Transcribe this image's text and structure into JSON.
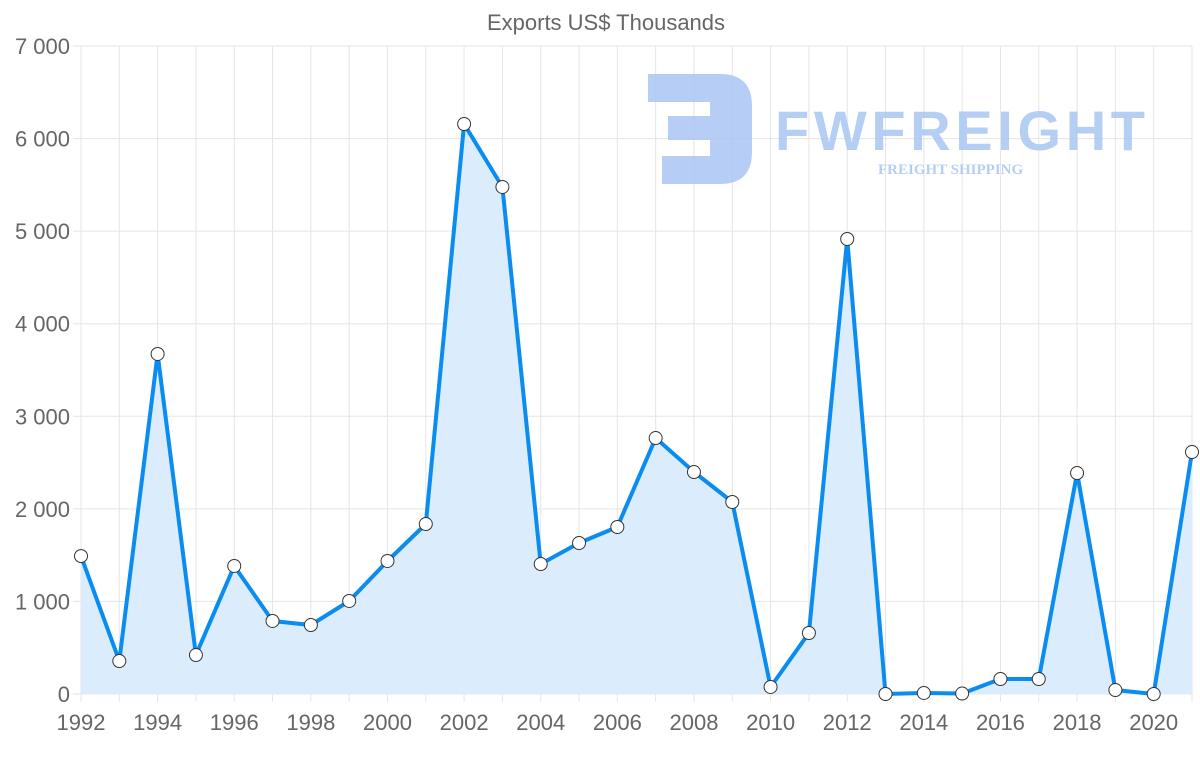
{
  "chart_data": {
    "type": "line",
    "title": "Exports US$ Thousands",
    "xlabel": "",
    "ylabel": "",
    "x": [
      1992,
      1993,
      1994,
      1995,
      1996,
      1997,
      1998,
      1999,
      2000,
      2001,
      2002,
      2003,
      2004,
      2005,
      2006,
      2007,
      2008,
      2009,
      2010,
      2011,
      2012,
      2013,
      2014,
      2015,
      2016,
      2017,
      2018,
      2019,
      2020,
      2021
    ],
    "series": [
      {
        "name": "Exports US$ Thousands",
        "values": [
          1490,
          356,
          3673,
          421,
          1383,
          789,
          745,
          1005,
          1437,
          1836,
          6157,
          5477,
          1404,
          1631,
          1804,
          2765,
          2398,
          2074,
          76,
          659,
          4915,
          0,
          11,
          5,
          162,
          162,
          2387,
          43,
          0,
          2614
        ]
      }
    ],
    "ylim": [
      0,
      7000
    ],
    "xlim": [
      1992,
      2021
    ],
    "yticks": [
      "0",
      "1 000",
      "2 000",
      "3 000",
      "4 000",
      "5 000",
      "6 000",
      "7 000"
    ],
    "xticks": [
      "1992",
      "1994",
      "1996",
      "1998",
      "2000",
      "2002",
      "2004",
      "2006",
      "2008",
      "2010",
      "2012",
      "2014",
      "2016",
      "2018",
      "2020"
    ],
    "grid": true,
    "filled": true,
    "colors": {
      "line": "#0a8cf0",
      "fill": "#dbedfd",
      "grid": "#e5e5e5",
      "point_fill": "#ffffff",
      "point_stroke": "#333333"
    }
  },
  "watermark": {
    "brand": "FWFREIGHT",
    "tagline": "FREIGHT SHIPPING",
    "color": "#a9c6f3"
  }
}
